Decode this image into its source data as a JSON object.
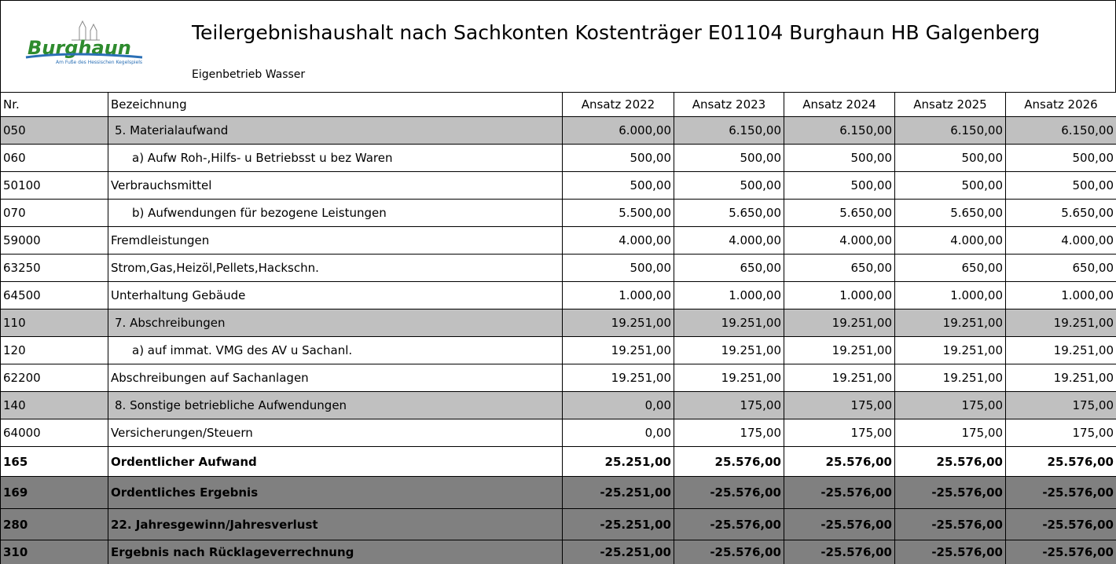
{
  "header": {
    "logo": {
      "name": "Burghaun",
      "tagline": "Am Fuße des Hessischen Kegelspiels"
    },
    "title": "Teilergebnishaushalt nach Sachkonten Kostenträger E01104 Burghaun HB Galgenberg",
    "subtitle": "Eigenbetrieb Wasser"
  },
  "table": {
    "columns": [
      "Nr.",
      "Bezeichnung",
      "Ansatz 2022",
      "Ansatz 2023",
      "Ansatz 2024",
      "Ansatz 2025",
      "Ansatz 2026"
    ],
    "rows": [
      [
        "050",
        "5. Materialaufwand",
        "6.000,00",
        "6.150,00",
        "6.150,00",
        "6.150,00",
        "6.150,00"
      ],
      [
        "060",
        "a) Aufw Roh-,Hilfs- u Betriebsst u bez Waren",
        "500,00",
        "500,00",
        "500,00",
        "500,00",
        "500,00"
      ],
      [
        "50100",
        "Verbrauchsmittel",
        "500,00",
        "500,00",
        "500,00",
        "500,00",
        "500,00"
      ],
      [
        "070",
        "b) Aufwendungen für bezogene Leistungen",
        "5.500,00",
        "5.650,00",
        "5.650,00",
        "5.650,00",
        "5.650,00"
      ],
      [
        "59000",
        "Fremdleistungen",
        "4.000,00",
        "4.000,00",
        "4.000,00",
        "4.000,00",
        "4.000,00"
      ],
      [
        "63250",
        "Strom,Gas,Heizöl,Pellets,Hackschn.",
        "500,00",
        "650,00",
        "650,00",
        "650,00",
        "650,00"
      ],
      [
        "64500",
        "Unterhaltung Gebäude",
        "1.000,00",
        "1.000,00",
        "1.000,00",
        "1.000,00",
        "1.000,00"
      ],
      [
        "110",
        "7. Abschreibungen",
        "19.251,00",
        "19.251,00",
        "19.251,00",
        "19.251,00",
        "19.251,00"
      ],
      [
        "120",
        "a) auf immat. VMG des AV u Sachanl.",
        "19.251,00",
        "19.251,00",
        "19.251,00",
        "19.251,00",
        "19.251,00"
      ],
      [
        "62200",
        "Abschreibungen auf Sachanlagen",
        "19.251,00",
        "19.251,00",
        "19.251,00",
        "19.251,00",
        "19.251,00"
      ],
      [
        "140",
        "8. Sonstige betriebliche Aufwendungen",
        "0,00",
        "175,00",
        "175,00",
        "175,00",
        "175,00"
      ],
      [
        "64000",
        "Versicherungen/Steuern",
        "0,00",
        "175,00",
        "175,00",
        "175,00",
        "175,00"
      ],
      [
        "165",
        "Ordentlicher Aufwand",
        "25.251,00",
        "25.576,00",
        "25.576,00",
        "25.576,00",
        "25.576,00"
      ],
      [
        "169",
        "Ordentliches Ergebnis",
        "-25.251,00",
        "-25.576,00",
        "-25.576,00",
        "-25.576,00",
        "-25.576,00"
      ],
      [
        "280",
        "22. Jahresgewinn/Jahresverlust",
        "-25.251,00",
        "-25.576,00",
        "-25.576,00",
        "-25.576,00",
        "-25.576,00"
      ],
      [
        "310",
        "Ergebnis nach Rücklageverrechnung",
        "-25.251,00",
        "-25.576,00",
        "-25.576,00",
        "-25.576,00",
        "-25.576,00"
      ]
    ]
  }
}
